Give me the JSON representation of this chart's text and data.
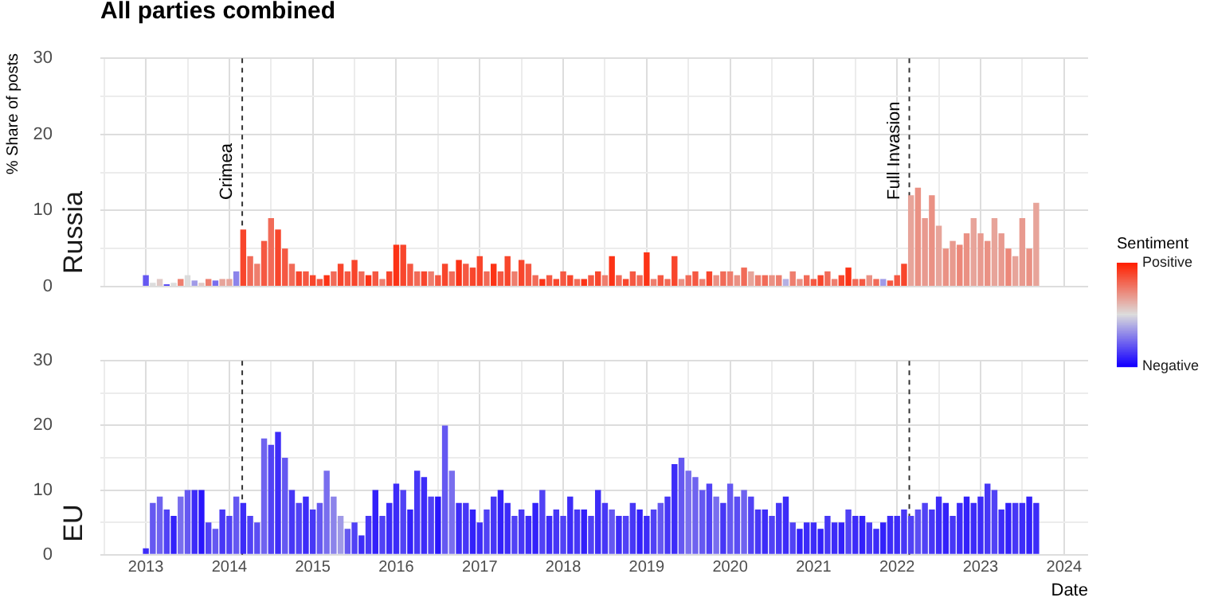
{
  "chart_data": [
    {
      "type": "bar",
      "title": "All parties combined",
      "subtitle": "Russia",
      "ylabel": "% Share of posts",
      "clabel": "Sentiment",
      "clim": [
        -1,
        1
      ],
      "cticks": [
        {
          "value": 1,
          "label": "Positive"
        },
        {
          "value": -1,
          "label": "Negative"
        }
      ],
      "legend": false,
      "grid": true,
      "tick_labels": "y",
      "xlim": [
        "2012-06-15",
        "2024-04-15"
      ],
      "xticks": [
        {
          "value": "2012-07",
          "label": null
        },
        "2013",
        {
          "value": "2013-07",
          "label": null
        },
        "2014",
        {
          "value": "2014-07",
          "label": null
        },
        "2015",
        {
          "value": "2015-07",
          "label": null
        },
        "2016",
        {
          "value": "2016-07",
          "label": null
        },
        "2017",
        {
          "value": "2017-07",
          "label": null
        },
        "2018",
        {
          "value": "2018-07",
          "label": null
        },
        "2019",
        {
          "value": "2019-07",
          "label": null
        },
        "2020",
        {
          "value": "2020-07",
          "label": null
        },
        "2021",
        {
          "value": "2021-07",
          "label": null
        },
        "2022",
        {
          "value": "2022-07",
          "label": null
        },
        "2023",
        {
          "value": "2023-07",
          "label": null
        },
        "2024"
      ],
      "ylim": [
        0,
        30
      ],
      "yticks": [
        0,
        {
          "value": 5,
          "label": null
        },
        10,
        {
          "value": 15,
          "label": null
        },
        20,
        {
          "value": 25,
          "label": null
        },
        30
      ],
      "ref_lines": [
        {
          "axis": "x",
          "value": "2014-02-27",
          "label": "Crimea",
          "line_style": "dashed",
          "color": "#333333"
        },
        {
          "axis": "x",
          "value": "2022-02-24",
          "label": "Full Invasion",
          "line_style": "dashed",
          "color": "#333333"
        }
      ],
      "x": [
        "2013-01",
        "2013-02",
        "2013-03",
        "2013-04",
        "2013-05",
        "2013-06",
        "2013-07",
        "2013-08",
        "2013-09",
        "2013-10",
        "2013-11",
        "2013-12",
        "2014-01",
        "2014-02",
        "2014-03",
        "2014-04",
        "2014-05",
        "2014-06",
        "2014-07",
        "2014-08",
        "2014-09",
        "2014-10",
        "2014-11",
        "2014-12",
        "2015-01",
        "2015-02",
        "2015-03",
        "2015-04",
        "2015-05",
        "2015-06",
        "2015-07",
        "2015-08",
        "2015-09",
        "2015-10",
        "2015-11",
        "2015-12",
        "2016-01",
        "2016-02",
        "2016-03",
        "2016-04",
        "2016-05",
        "2016-06",
        "2016-07",
        "2016-08",
        "2016-09",
        "2016-10",
        "2016-11",
        "2016-12",
        "2017-01",
        "2017-02",
        "2017-03",
        "2017-04",
        "2017-05",
        "2017-06",
        "2017-07",
        "2017-08",
        "2017-09",
        "2017-10",
        "2017-11",
        "2017-12",
        "2018-01",
        "2018-02",
        "2018-03",
        "2018-04",
        "2018-05",
        "2018-06",
        "2018-07",
        "2018-08",
        "2018-09",
        "2018-10",
        "2018-11",
        "2018-12",
        "2019-01",
        "2019-02",
        "2019-03",
        "2019-04",
        "2019-05",
        "2019-06",
        "2019-07",
        "2019-08",
        "2019-09",
        "2019-10",
        "2019-11",
        "2019-12",
        "2020-01",
        "2020-02",
        "2020-03",
        "2020-04",
        "2020-05",
        "2020-06",
        "2020-07",
        "2020-08",
        "2020-09",
        "2020-10",
        "2020-11",
        "2020-12",
        "2021-01",
        "2021-02",
        "2021-03",
        "2021-04",
        "2021-05",
        "2021-06",
        "2021-07",
        "2021-08",
        "2021-09",
        "2021-10",
        "2021-11",
        "2021-12",
        "2022-01",
        "2022-02",
        "2022-03",
        "2022-04",
        "2022-05",
        "2022-06",
        "2022-07",
        "2022-08",
        "2022-09",
        "2022-10",
        "2022-11",
        "2022-12",
        "2023-01",
        "2023-02",
        "2023-03",
        "2023-04",
        "2023-05",
        "2023-06",
        "2023-07",
        "2023-08",
        "2023-09"
      ],
      "values": [
        1.5,
        0.5,
        1,
        0.3,
        0.5,
        1,
        1.5,
        0.8,
        0.5,
        1,
        0.8,
        1,
        1,
        2,
        7.5,
        4,
        3,
        6,
        9,
        7.5,
        5,
        3,
        2,
        2,
        1.5,
        1,
        1.5,
        2,
        3,
        2,
        3.5,
        2,
        1.5,
        2,
        1,
        2,
        5.5,
        5.5,
        3,
        2,
        2,
        2,
        1.5,
        3,
        2,
        3.5,
        3,
        2.5,
        4,
        2,
        3,
        2,
        4,
        2,
        3.5,
        3,
        1.5,
        1,
        1.5,
        1,
        2,
        1.5,
        1,
        1,
        1.5,
        2,
        1.5,
        4,
        1.5,
        1,
        2,
        1.5,
        4.5,
        1,
        1.5,
        1,
        4,
        1,
        1.5,
        2,
        1,
        2,
        1.5,
        2,
        2,
        1.5,
        2.5,
        2,
        1.5,
        1.5,
        1.5,
        1.5,
        1,
        2,
        1,
        1.5,
        1,
        1.5,
        2,
        1,
        1.5,
        2.5,
        1,
        1,
        1.5,
        1,
        1,
        0.8,
        1.5,
        3,
        12,
        13,
        9,
        12,
        8,
        5,
        6,
        5.5,
        7,
        9,
        7,
        6,
        9,
        7,
        5,
        4,
        9,
        5,
        11
      ],
      "cvalues": [
        -0.6,
        0,
        0.1,
        -0.7,
        0,
        0.5,
        0,
        -0.3,
        0.1,
        0.5,
        -0.5,
        0.3,
        0.3,
        -0.4,
        0.8,
        0.6,
        0.5,
        0.7,
        0.6,
        0.8,
        0.7,
        0.6,
        0.8,
        0.7,
        0.8,
        0.7,
        0.9,
        0.6,
        0.8,
        0.7,
        0.8,
        0.6,
        0.9,
        0.7,
        0.5,
        0.8,
        0.9,
        0.8,
        0.7,
        0.6,
        0.8,
        0.5,
        0.7,
        0.8,
        0.6,
        0.9,
        0.7,
        0.8,
        0.8,
        0.6,
        0.9,
        0.7,
        0.8,
        0.5,
        0.8,
        0.7,
        0.6,
        0.9,
        0.7,
        0.8,
        0.7,
        0.8,
        0.6,
        0.9,
        0.7,
        0.8,
        0.5,
        0.9,
        0.6,
        0.8,
        0.7,
        0.6,
        0.9,
        0.5,
        0.7,
        0.6,
        0.8,
        0.4,
        0.6,
        0.7,
        0.5,
        0.8,
        0.4,
        0.6,
        0.5,
        0.4,
        0.6,
        0.3,
        0.5,
        0.6,
        0.4,
        0.5,
        -0.2,
        0.5,
        0.4,
        0.6,
        0.7,
        0.8,
        0.6,
        0.5,
        0.8,
        0.9,
        0.6,
        0.7,
        0.4,
        0.6,
        -0.3,
        0.7,
        0.7,
        0.8,
        0.3,
        0.4,
        0.35,
        0.4,
        0.3,
        0.4,
        0.35,
        0.45,
        0.4,
        0.3,
        0.35,
        0.4,
        0.3,
        0.35,
        0.45,
        0.3,
        0.35,
        0.4,
        0.3
      ]
    },
    {
      "type": "bar",
      "subtitle": "EU",
      "xlabel": "Date",
      "legend": false,
      "grid": true,
      "xlim": [
        "2012-06-15",
        "2024-04-15"
      ],
      "xticks": [
        {
          "value": "2012-07",
          "label": null
        },
        "2013",
        {
          "value": "2013-07",
          "label": null
        },
        "2014",
        {
          "value": "2014-07",
          "label": null
        },
        "2015",
        {
          "value": "2015-07",
          "label": null
        },
        "2016",
        {
          "value": "2016-07",
          "label": null
        },
        "2017",
        {
          "value": "2017-07",
          "label": null
        },
        "2018",
        {
          "value": "2018-07",
          "label": null
        },
        "2019",
        {
          "value": "2019-07",
          "label": null
        },
        "2020",
        {
          "value": "2020-07",
          "label": null
        },
        "2021",
        {
          "value": "2021-07",
          "label": null
        },
        "2022",
        {
          "value": "2022-07",
          "label": null
        },
        "2023",
        {
          "value": "2023-07",
          "label": null
        },
        "2024"
      ],
      "ylim": [
        0,
        30
      ],
      "yticks": [
        0,
        {
          "value": 5,
          "label": null
        },
        10,
        {
          "value": 15,
          "label": null
        },
        20,
        {
          "value": 25,
          "label": null
        },
        30
      ],
      "ref_lines": [
        {
          "axis": "x",
          "value": "2014-02-27",
          "line_style": "dashed",
          "color": "#333333"
        },
        {
          "axis": "x",
          "value": "2022-02-24",
          "line_style": "dashed",
          "color": "#333333"
        }
      ],
      "x": [
        "2013-01",
        "2013-02",
        "2013-03",
        "2013-04",
        "2013-05",
        "2013-06",
        "2013-07",
        "2013-08",
        "2013-09",
        "2013-10",
        "2013-11",
        "2013-12",
        "2014-01",
        "2014-02",
        "2014-03",
        "2014-04",
        "2014-05",
        "2014-06",
        "2014-07",
        "2014-08",
        "2014-09",
        "2014-10",
        "2014-11",
        "2014-12",
        "2015-01",
        "2015-02",
        "2015-03",
        "2015-04",
        "2015-05",
        "2015-06",
        "2015-07",
        "2015-08",
        "2015-09",
        "2015-10",
        "2015-11",
        "2015-12",
        "2016-01",
        "2016-02",
        "2016-03",
        "2016-04",
        "2016-05",
        "2016-06",
        "2016-07",
        "2016-08",
        "2016-09",
        "2016-10",
        "2016-11",
        "2016-12",
        "2017-01",
        "2017-02",
        "2017-03",
        "2017-04",
        "2017-05",
        "2017-06",
        "2017-07",
        "2017-08",
        "2017-09",
        "2017-10",
        "2017-11",
        "2017-12",
        "2018-01",
        "2018-02",
        "2018-03",
        "2018-04",
        "2018-05",
        "2018-06",
        "2018-07",
        "2018-08",
        "2018-09",
        "2018-10",
        "2018-11",
        "2018-12",
        "2019-01",
        "2019-02",
        "2019-03",
        "2019-04",
        "2019-05",
        "2019-06",
        "2019-07",
        "2019-08",
        "2019-09",
        "2019-10",
        "2019-11",
        "2019-12",
        "2020-01",
        "2020-02",
        "2020-03",
        "2020-04",
        "2020-05",
        "2020-06",
        "2020-07",
        "2020-08",
        "2020-09",
        "2020-10",
        "2020-11",
        "2020-12",
        "2021-01",
        "2021-02",
        "2021-03",
        "2021-04",
        "2021-05",
        "2021-06",
        "2021-07",
        "2021-08",
        "2021-09",
        "2021-10",
        "2021-11",
        "2021-12",
        "2022-01",
        "2022-02",
        "2022-03",
        "2022-04",
        "2022-05",
        "2022-06",
        "2022-07",
        "2022-08",
        "2022-09",
        "2022-10",
        "2022-11",
        "2022-12",
        "2023-01",
        "2023-02",
        "2023-03",
        "2023-04",
        "2023-05",
        "2023-06",
        "2023-07",
        "2023-08",
        "2023-09"
      ],
      "values": [
        1,
        8,
        9,
        7,
        6,
        9,
        10,
        10,
        10,
        5,
        4,
        7,
        6,
        9,
        8,
        6,
        5,
        18,
        17,
        19,
        15,
        10,
        8,
        9,
        7,
        8,
        13,
        9,
        6,
        4,
        5,
        3,
        6,
        10,
        6,
        8,
        11,
        10,
        7,
        13,
        12,
        9,
        9,
        20,
        13,
        8,
        8,
        7,
        5,
        7,
        9,
        10,
        8,
        6,
        7,
        6,
        8,
        10,
        6,
        7,
        6,
        9,
        7,
        7,
        6,
        10,
        8,
        7,
        6,
        6,
        8,
        7,
        6,
        7,
        8,
        9,
        14,
        15,
        13,
        12,
        10,
        11,
        9,
        8,
        11,
        9,
        10,
        9,
        7,
        7,
        6,
        8,
        9,
        5,
        4,
        5,
        5,
        4,
        6,
        5,
        5,
        7,
        6,
        6,
        5,
        4,
        5,
        6,
        6,
        7,
        6,
        7,
        8,
        7,
        9,
        8,
        6,
        8,
        9,
        8,
        9,
        11,
        10,
        7,
        8,
        8,
        8,
        9,
        8
      ],
      "colors": [
        "#3d2cf8",
        "#6558f1",
        "#6f63ef",
        "#5142f5",
        "#3321fa",
        "#796eee",
        "#6558f1",
        "#3d2cf8",
        "#2916fc",
        "#5142f5",
        "#6558f1",
        "#4737f6",
        "#5142f5",
        "#6558f1",
        "#3d2cf8",
        "#5142f5",
        "#5b4df3",
        "#6f63ef",
        "#5142f5",
        "#3d2cf8",
        "#6558f1",
        "#4737f6",
        "#5142f5",
        "#3d2cf8",
        "#4737f6",
        "#6558f1",
        "#796eee",
        "#8c84ea",
        "#a09ae7",
        "#6558f1",
        "#5142f5",
        "#3d2cf8",
        "#4737f6",
        "#3321fa",
        "#5142f5",
        "#3d2cf8",
        "#3d2cf8",
        "#5142f5",
        "#3321fa",
        "#4737f6",
        "#3d2cf8",
        "#5142f5",
        "#2916fc",
        "#6558f1",
        "#796eee",
        "#3d2cf8",
        "#4737f6",
        "#3321fa",
        "#3d2cf8",
        "#5142f5",
        "#4737f6",
        "#3321fa",
        "#3d2cf8",
        "#5142f5",
        "#4737f6",
        "#3d2cf8",
        "#3321fa",
        "#5142f5",
        "#3d2cf8",
        "#4737f6",
        "#5142f5",
        "#3d2cf8",
        "#4737f6",
        "#3321fa",
        "#5142f5",
        "#3d2cf8",
        "#4737f6",
        "#6558f1",
        "#3d2cf8",
        "#5142f5",
        "#4737f6",
        "#3321fa",
        "#3d2cf8",
        "#5142f5",
        "#6558f1",
        "#4737f6",
        "#3d2cf8",
        "#6558f1",
        "#796eee",
        "#6f63ef",
        "#6558f1",
        "#5142f5",
        "#796eee",
        "#4737f6",
        "#6558f1",
        "#5b4df3",
        "#6f63ef",
        "#5142f5",
        "#4737f6",
        "#3d2cf8",
        "#5142f5",
        "#4737f6",
        "#3d2cf8",
        "#5142f5",
        "#3321fa",
        "#3d2cf8",
        "#3d2cf8",
        "#3321fa",
        "#4737f6",
        "#3d2cf8",
        "#3321fa",
        "#5142f5",
        "#3d2cf8",
        "#3321fa",
        "#4737f6",
        "#3d2cf8",
        "#3321fa",
        "#3d2cf8",
        "#3d2cf8",
        "#4737f6",
        "#5142f5",
        "#5b4df3",
        "#5142f5",
        "#4737f6",
        "#3d2cf8",
        "#3321fa",
        "#4737f6",
        "#3d2cf8",
        "#3321fa",
        "#3d2cf8",
        "#3d2cf8",
        "#4737f6",
        "#5142f5",
        "#3d2cf8",
        "#3321fa",
        "#4737f6",
        "#3d2cf8",
        "#3321fa",
        "#3d2cf8"
      ]
    }
  ]
}
